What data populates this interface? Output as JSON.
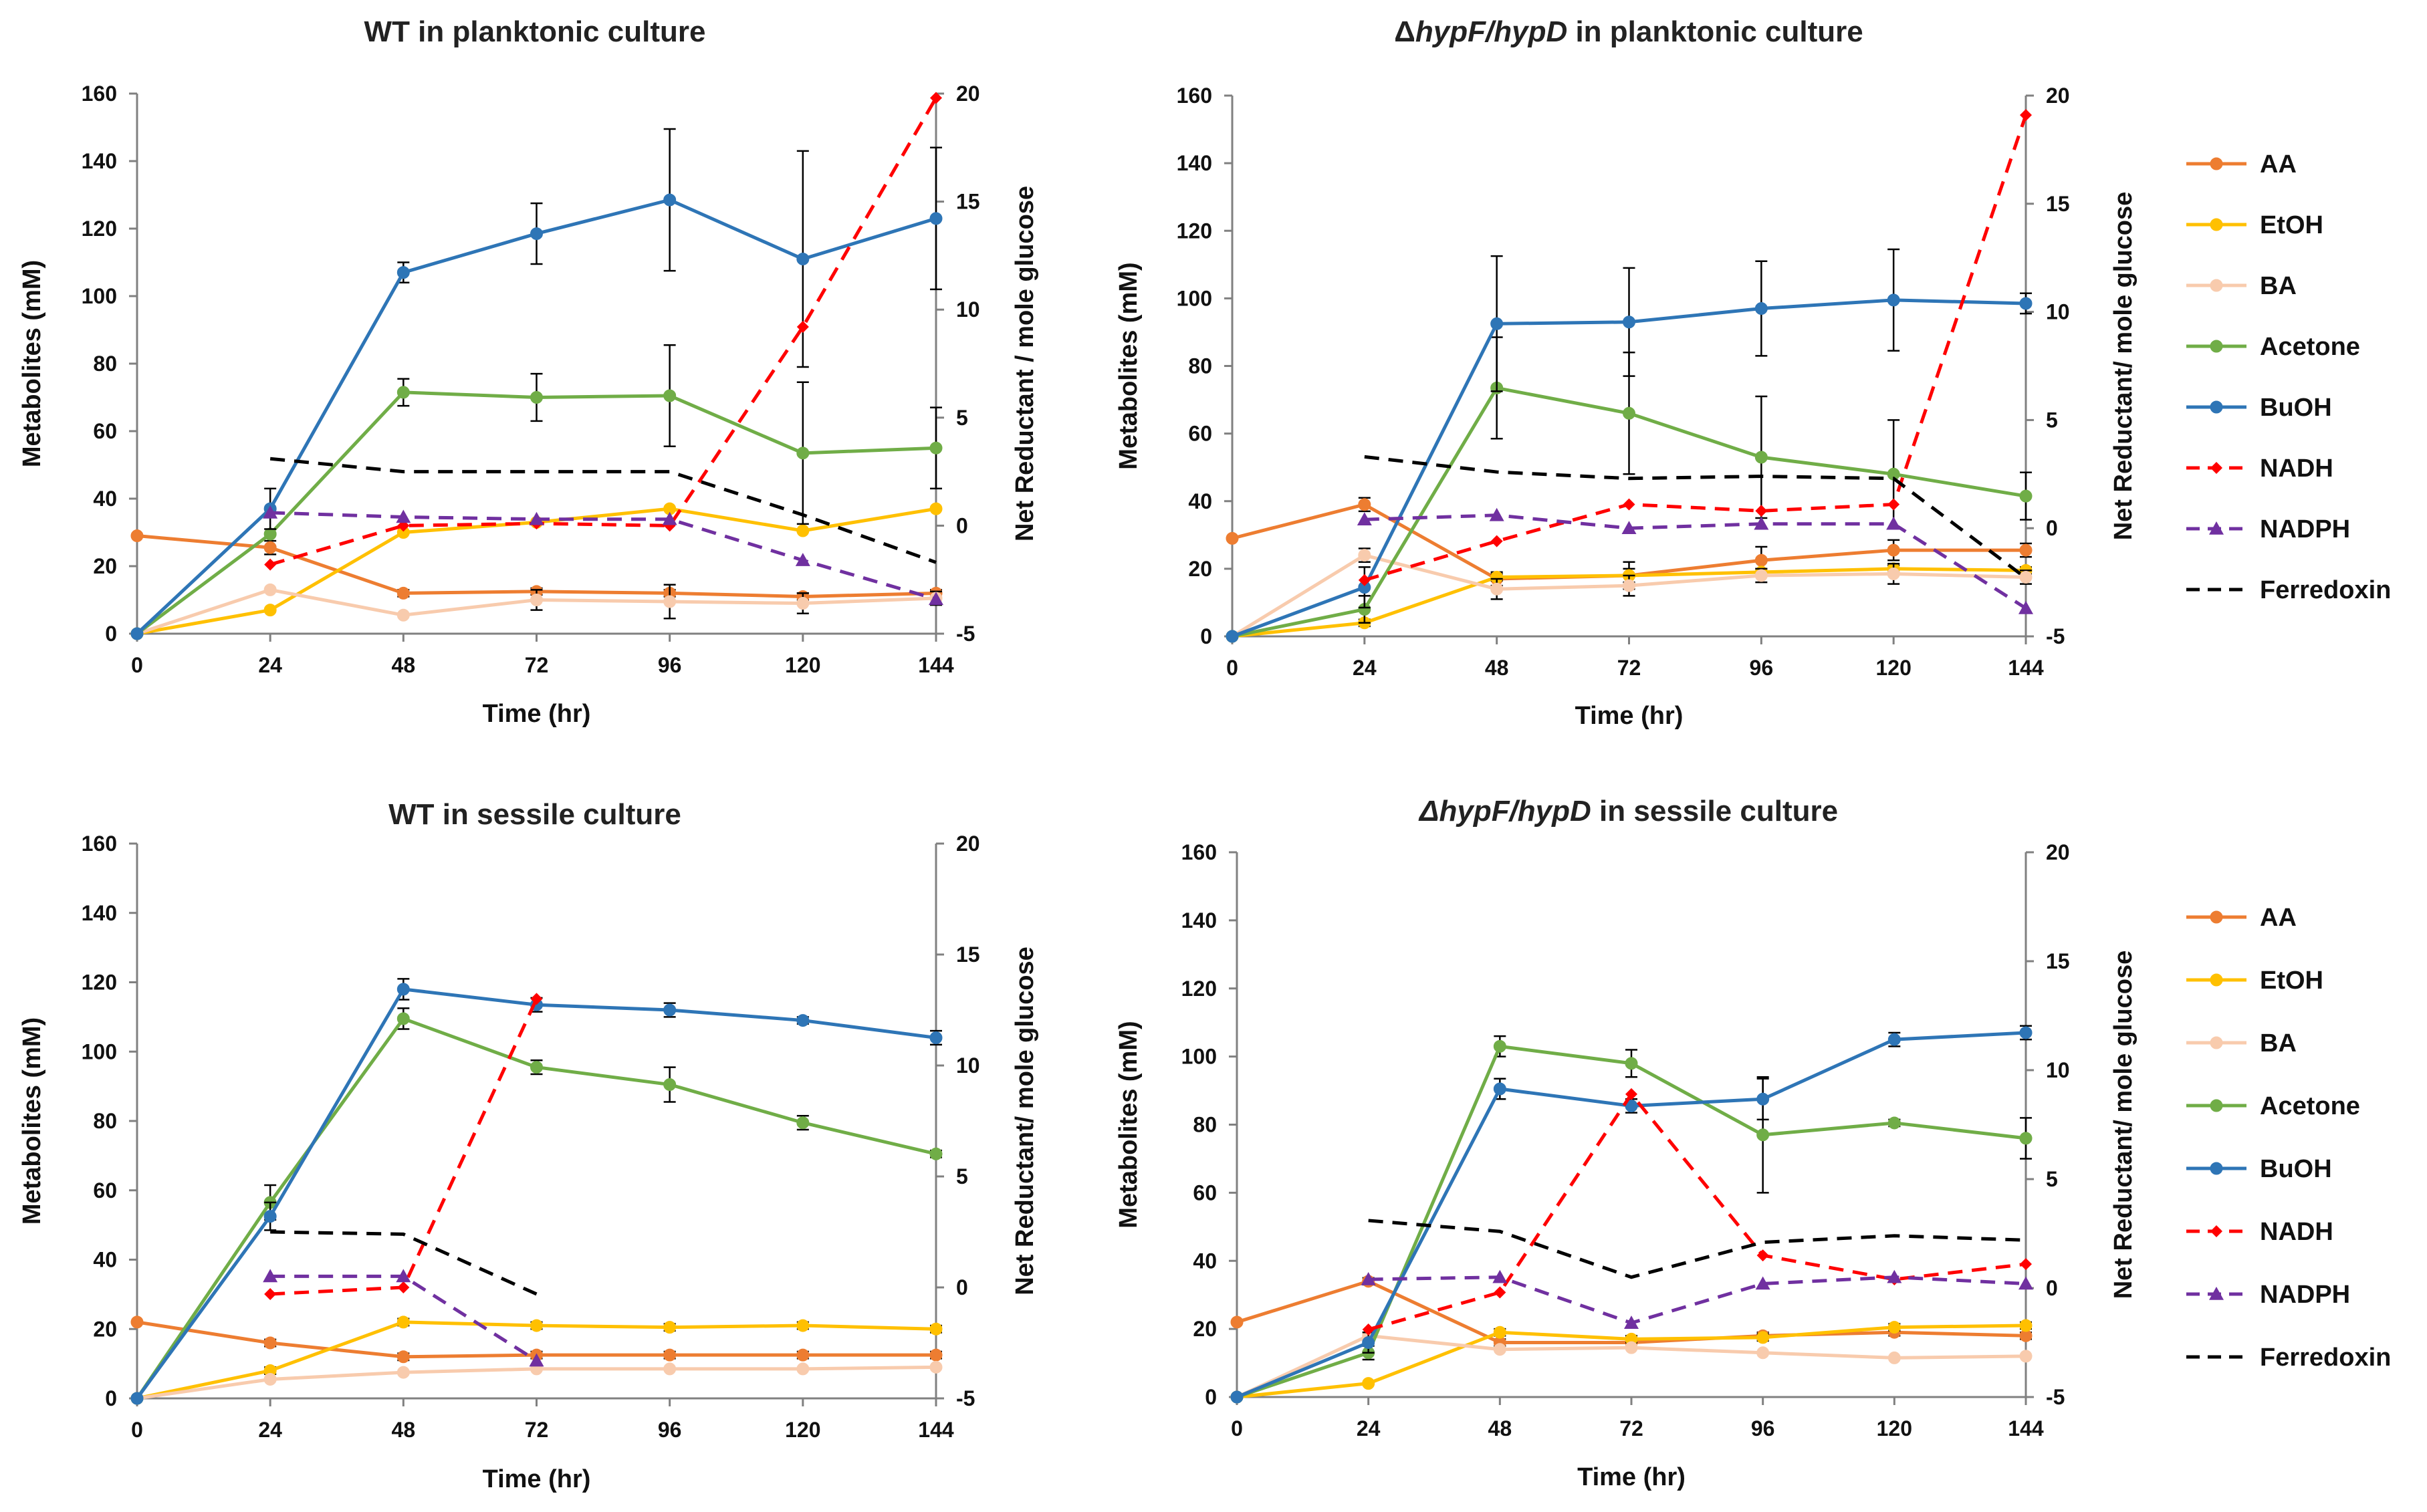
{
  "colors": {
    "AA": "#ED7D31",
    "EtOH": "#FFC000",
    "BA": "#F8CBAD",
    "Acetone": "#70AD47",
    "BuOH": "#2E75B6",
    "NADH": "#FF0000",
    "NADPH": "#7030A0",
    "Ferredoxin": "#000000",
    "axis": "#808080",
    "error": "#000000"
  },
  "legend": [
    {
      "name": "AA",
      "label": "AA",
      "style": "solid",
      "marker": "circle",
      "color": "#ED7D31"
    },
    {
      "name": "EtOH",
      "label": "EtOH",
      "style": "solid",
      "marker": "circle",
      "color": "#FFC000"
    },
    {
      "name": "BA",
      "label": "BA",
      "style": "solid",
      "marker": "circle",
      "color": "#F8CBAD"
    },
    {
      "name": "Acetone",
      "label": "Acetone",
      "style": "solid",
      "marker": "circle",
      "color": "#70AD47"
    },
    {
      "name": "BuOH",
      "label": "BuOH",
      "style": "solid",
      "marker": "circle",
      "color": "#2E75B6"
    },
    {
      "name": "NADH",
      "label": "NADH",
      "style": "dashed",
      "marker": "diamond",
      "color": "#FF0000"
    },
    {
      "name": "NADPH",
      "label": "NADPH",
      "style": "dashed",
      "marker": "triangle",
      "color": "#7030A0"
    },
    {
      "name": "Ferredoxin",
      "label": "Ferredoxin",
      "style": "dashed",
      "marker": "none",
      "color": "#000000"
    }
  ],
  "chart_data": [
    {
      "type": "line",
      "title_parts": [
        {
          "text": "WT in planktonic culture",
          "italic": false
        }
      ],
      "xlabel": "Time (hr)",
      "ylabel": "Metabolites (mM)",
      "y2label": "Net Reductant / mole glucose",
      "x": [
        0,
        24,
        48,
        72,
        96,
        120,
        144
      ],
      "xlim": [
        0,
        144
      ],
      "ylim": [
        0,
        160
      ],
      "yticks": [
        0,
        20,
        40,
        60,
        80,
        100,
        120,
        140,
        160
      ],
      "y2lim": [
        -5,
        20
      ],
      "y2ticks": [
        -5,
        0,
        5,
        10,
        15,
        20
      ],
      "series": [
        {
          "name": "AA",
          "axis": "left",
          "values": [
            29,
            25.5,
            12,
            12.5,
            12,
            11,
            12
          ],
          "errors": [
            0,
            2,
            1,
            1,
            1,
            1,
            1
          ]
        },
        {
          "name": "EtOH",
          "axis": "left",
          "values": [
            0,
            7,
            30,
            33,
            37,
            30.5,
            37
          ],
          "errors": [
            0,
            0,
            0,
            0,
            0,
            0,
            0
          ]
        },
        {
          "name": "BA",
          "axis": "left",
          "values": [
            0,
            13,
            5.5,
            10,
            9.5,
            9,
            10.5
          ],
          "errors": [
            0,
            0,
            0,
            3,
            5,
            3,
            2
          ]
        },
        {
          "name": "Acetone",
          "axis": "left",
          "values": [
            0,
            29.5,
            71.5,
            70,
            70.5,
            53.5,
            55
          ],
          "errors": [
            0,
            0,
            4,
            7,
            15,
            21,
            12
          ]
        },
        {
          "name": "BuOH",
          "axis": "left",
          "values": [
            0,
            37,
            107,
            118.5,
            128.5,
            111,
            123
          ],
          "errors": [
            0,
            6,
            3,
            9,
            21,
            32,
            21
          ]
        },
        {
          "name": "NADH",
          "axis": "right",
          "values": [
            null,
            -1.8,
            0,
            0.1,
            0,
            9.2,
            19.8
          ],
          "errors": [
            0,
            0,
            0,
            0,
            0,
            0,
            0
          ]
        },
        {
          "name": "NADPH",
          "axis": "right",
          "values": [
            null,
            0.6,
            0.4,
            0.3,
            0.3,
            -1.6,
            -3.4
          ],
          "errors": [
            0,
            0,
            0,
            0,
            0,
            0,
            0
          ]
        },
        {
          "name": "Ferredoxin",
          "axis": "right",
          "values": [
            null,
            3.1,
            2.5,
            2.5,
            2.5,
            0.5,
            -1.7
          ],
          "errors": [
            0,
            0,
            0,
            0,
            0,
            0,
            0
          ]
        }
      ]
    },
    {
      "type": "line",
      "title_parts": [
        {
          "text": "Δ",
          "italic": false
        },
        {
          "text": "hypF/hypD",
          "italic": true
        },
        {
          "text": " in planktonic culture",
          "italic": false
        }
      ],
      "xlabel": "Time (hr)",
      "ylabel": "Metabolites (mM)",
      "y2label": "Net Reductant/ mole glucose",
      "x": [
        0,
        24,
        48,
        72,
        96,
        120,
        144
      ],
      "xlim": [
        0,
        144
      ],
      "ylim": [
        0,
        160
      ],
      "yticks": [
        0,
        20,
        40,
        60,
        80,
        100,
        120,
        140,
        160
      ],
      "y2lim": [
        -5,
        20
      ],
      "y2ticks": [
        -5,
        0,
        5,
        10,
        15,
        20
      ],
      "series": [
        {
          "name": "AA",
          "axis": "left",
          "values": [
            29,
            39,
            17,
            18,
            22.5,
            25.5,
            25.5
          ],
          "errors": [
            0,
            2,
            2,
            4,
            4,
            3,
            2
          ]
        },
        {
          "name": "EtOH",
          "axis": "left",
          "values": [
            0,
            4,
            17.5,
            18,
            19,
            20,
            19.5
          ],
          "errors": [
            0,
            1,
            1,
            2,
            1,
            1,
            1
          ]
        },
        {
          "name": "BA",
          "axis": "left",
          "values": [
            0,
            24,
            14,
            15,
            18,
            18.5,
            17.5
          ],
          "errors": [
            0,
            2,
            3,
            3,
            2,
            3,
            2
          ]
        },
        {
          "name": "Acetone",
          "axis": "left",
          "values": [
            0,
            8,
            73.5,
            66,
            53,
            48,
            41.5
          ],
          "errors": [
            0,
            4,
            15,
            18,
            18,
            16,
            7
          ]
        },
        {
          "name": "BuOH",
          "axis": "left",
          "values": [
            0,
            14.5,
            92.5,
            93,
            97,
            99.5,
            98.5
          ],
          "errors": [
            0,
            6,
            20,
            16,
            14,
            15,
            3
          ]
        },
        {
          "name": "NADH",
          "axis": "right",
          "values": [
            null,
            -2.4,
            -0.6,
            1.1,
            0.8,
            1.1,
            19.1
          ],
          "errors": [
            0,
            0,
            0,
            0,
            0,
            0,
            0
          ]
        },
        {
          "name": "NADPH",
          "axis": "right",
          "values": [
            null,
            0.4,
            0.6,
            0,
            0.2,
            0.2,
            -3.7
          ],
          "errors": [
            0,
            0,
            0,
            0,
            0,
            0,
            0
          ]
        },
        {
          "name": "Ferredoxin",
          "axis": "right",
          "values": [
            null,
            3.3,
            2.6,
            2.3,
            2.4,
            2.3,
            -2.3
          ],
          "errors": [
            0,
            0,
            0,
            0,
            0,
            0,
            0
          ]
        }
      ]
    },
    {
      "type": "line",
      "title_parts": [
        {
          "text": "WT in sessile culture",
          "italic": false
        }
      ],
      "xlabel": "Time (hr)",
      "ylabel": "Metabolites (mM)",
      "y2label": "Net Reductant/ mole glucose",
      "x": [
        0,
        24,
        48,
        72,
        96,
        120,
        144
      ],
      "xlim": [
        0,
        144
      ],
      "ylim": [
        0,
        160
      ],
      "yticks": [
        0,
        20,
        40,
        60,
        80,
        100,
        120,
        140,
        160
      ],
      "y2lim": [
        -5,
        20
      ],
      "y2ticks": [
        -5,
        0,
        5,
        10,
        15,
        20
      ],
      "series": [
        {
          "name": "AA",
          "axis": "left",
          "values": [
            22,
            16,
            12,
            12.5,
            12.5,
            12.5,
            12.5
          ],
          "errors": [
            0,
            1,
            1,
            1,
            1,
            1,
            1
          ]
        },
        {
          "name": "EtOH",
          "axis": "left",
          "values": [
            0,
            8,
            22,
            21,
            20.5,
            21,
            20
          ],
          "errors": [
            0,
            1,
            1,
            1,
            1,
            1,
            1
          ]
        },
        {
          "name": "BA",
          "axis": "left",
          "values": [
            0,
            5.5,
            7.5,
            8.5,
            8.5,
            8.5,
            9
          ],
          "errors": [
            0,
            0,
            0,
            0,
            0,
            0,
            0
          ]
        },
        {
          "name": "Acetone",
          "axis": "left",
          "values": [
            0,
            56.5,
            109.5,
            95.5,
            90.5,
            79.5,
            70.5
          ],
          "errors": [
            0,
            5,
            3,
            2,
            5,
            2,
            1
          ]
        },
        {
          "name": "BuOH",
          "axis": "left",
          "values": [
            0,
            52.5,
            118,
            113.5,
            112,
            109,
            104
          ],
          "errors": [
            0,
            4,
            3,
            2,
            2,
            1,
            2
          ]
        },
        {
          "name": "NADH",
          "axis": "right",
          "values": [
            null,
            -0.3,
            0,
            13,
            null,
            null,
            null
          ],
          "errors": [
            0,
            0,
            0,
            0,
            0,
            0,
            0
          ]
        },
        {
          "name": "NADPH",
          "axis": "right",
          "values": [
            null,
            0.5,
            0.5,
            -3.3,
            null,
            null,
            null
          ],
          "errors": [
            0,
            0,
            0,
            0,
            0,
            0,
            0
          ]
        },
        {
          "name": "Ferredoxin",
          "axis": "right",
          "values": [
            null,
            2.5,
            2.4,
            -0.3,
            null,
            null,
            null
          ],
          "errors": [
            0,
            0,
            0,
            0,
            0,
            0,
            0
          ]
        }
      ]
    },
    {
      "type": "line",
      "title_parts": [
        {
          "text": "Δ",
          "italic": true
        },
        {
          "text": "hypF/hypD",
          "italic": true
        },
        {
          "text": " in sessile culture",
          "italic": false
        }
      ],
      "xlabel": "Time (hr)",
      "ylabel": "Metabolites (mM)",
      "y2label": "Net Reductant/ mole glucose",
      "x": [
        0,
        24,
        48,
        72,
        96,
        120,
        144
      ],
      "xlim": [
        0,
        144
      ],
      "ylim": [
        0,
        160
      ],
      "yticks": [
        0,
        20,
        40,
        60,
        80,
        100,
        120,
        140,
        160
      ],
      "y2lim": [
        -5,
        20
      ],
      "y2ticks": [
        -5,
        0,
        5,
        10,
        15,
        20
      ],
      "series": [
        {
          "name": "AA",
          "axis": "left",
          "values": [
            22,
            34,
            16,
            16,
            18,
            19,
            18
          ],
          "errors": [
            0,
            1,
            1,
            1,
            1,
            1,
            1
          ]
        },
        {
          "name": "EtOH",
          "axis": "left",
          "values": [
            0,
            4,
            19,
            17,
            17.5,
            20.5,
            21
          ],
          "errors": [
            0,
            0,
            1,
            1,
            1,
            1,
            1
          ]
        },
        {
          "name": "BA",
          "axis": "left",
          "values": [
            0,
            18,
            14,
            14.5,
            13,
            11.5,
            12
          ],
          "errors": [
            0,
            0,
            0,
            0,
            0,
            0,
            0
          ]
        },
        {
          "name": "Acetone",
          "axis": "left",
          "values": [
            0,
            13,
            103,
            98,
            77,
            80.5,
            76
          ],
          "errors": [
            0,
            2,
            3,
            4,
            17,
            1,
            6
          ]
        },
        {
          "name": "BuOH",
          "axis": "left",
          "values": [
            0,
            16,
            90.5,
            85.5,
            87.5,
            105,
            107
          ],
          "errors": [
            0,
            3,
            3,
            2,
            6,
            2,
            2
          ]
        },
        {
          "name": "NADH",
          "axis": "right",
          "values": [
            null,
            -1.9,
            -0.2,
            8.9,
            1.5,
            0.4,
            1.1
          ],
          "errors": [
            0,
            0,
            0,
            0,
            0,
            0,
            0
          ]
        },
        {
          "name": "NADPH",
          "axis": "right",
          "values": [
            null,
            0.4,
            0.5,
            -1.6,
            0.2,
            0.5,
            0.2
          ],
          "errors": [
            0,
            0,
            0,
            0,
            0,
            0,
            0
          ]
        },
        {
          "name": "Ferredoxin",
          "axis": "right",
          "values": [
            null,
            3.1,
            2.6,
            0.5,
            2.1,
            2.4,
            2.2
          ],
          "errors": [
            0,
            0,
            0,
            0,
            0,
            0,
            0
          ]
        }
      ]
    }
  ]
}
